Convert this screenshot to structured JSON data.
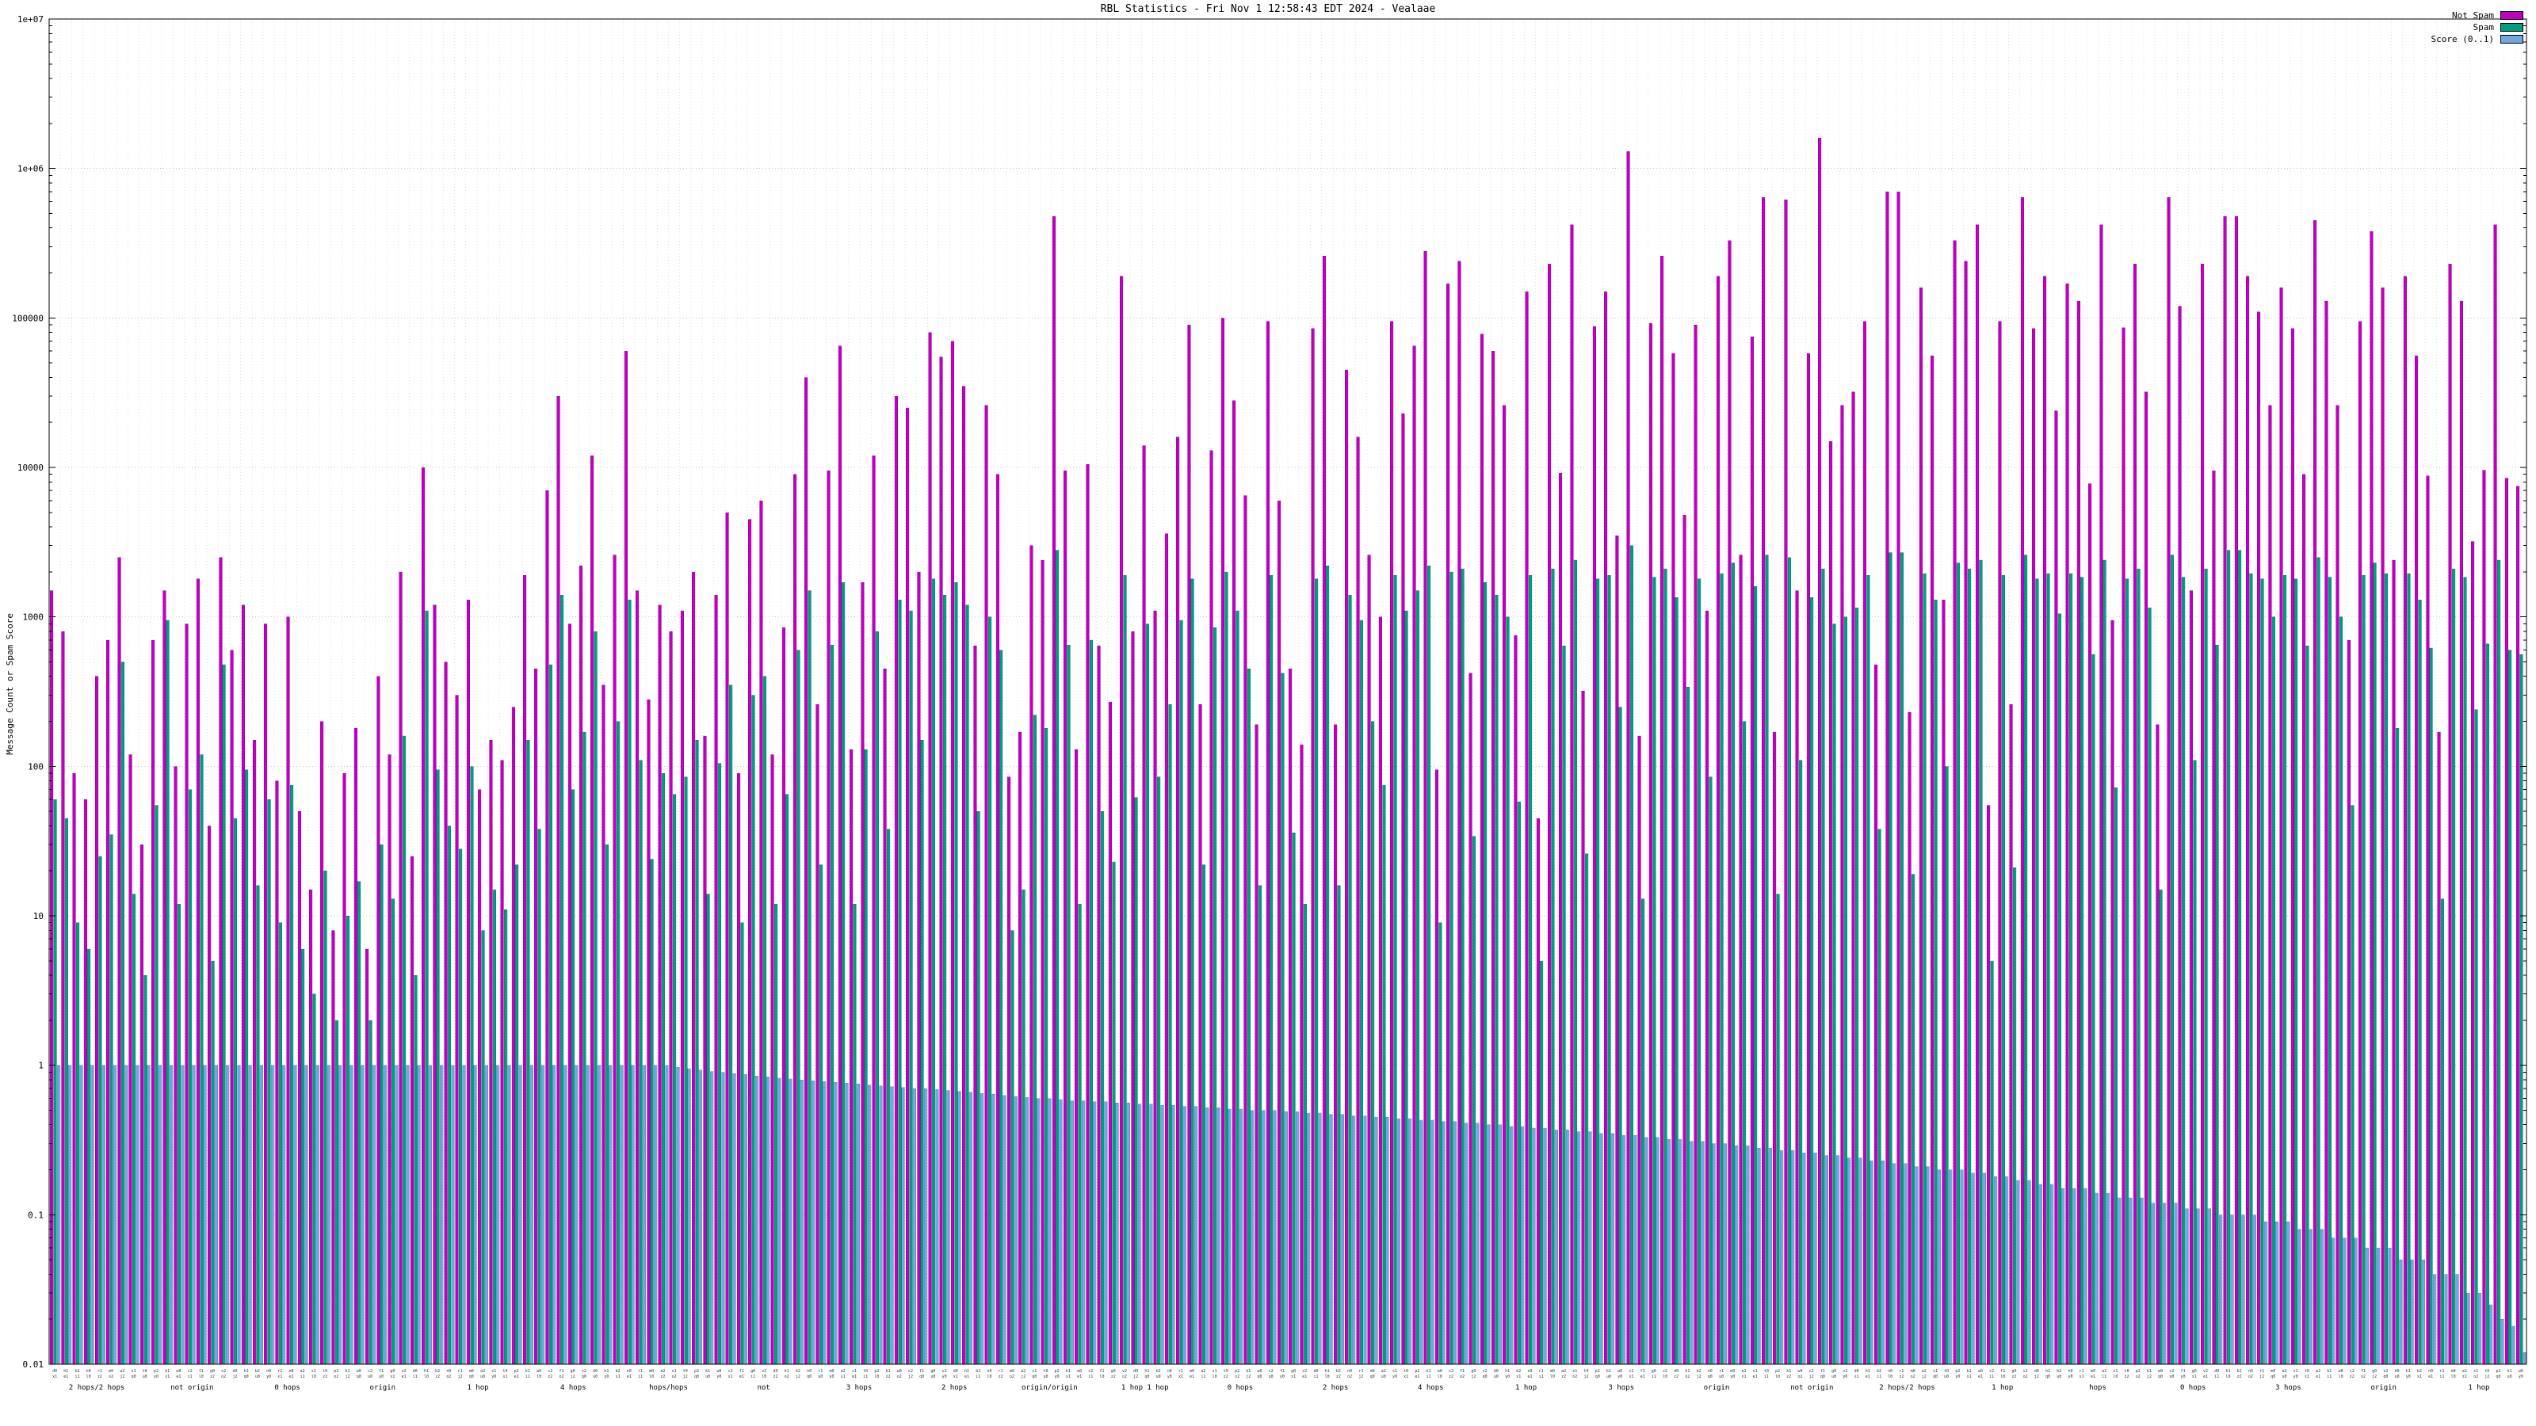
{
  "title": "RBL Statistics - Fri Nov  1 12:58:43 EDT 2024 - Vealaae",
  "legend": {
    "items": [
      {
        "label": "Not Spam",
        "color": "#c000c0"
      },
      {
        "label": "Spam",
        "color": "#009e80"
      },
      {
        "label": "Score (0..1)",
        "color": "#6fa8dc"
      }
    ]
  },
  "y_axis": {
    "label": "Message Count or Spam Score",
    "scale": "log",
    "range": [
      0.01,
      10000000
    ],
    "tick_labels": [
      "1e+07",
      "1e+06",
      "100000",
      "10000",
      "1000",
      "100",
      "10",
      "1",
      "0.1",
      "0.01"
    ]
  },
  "x_axis": {
    "dense_row1": [
      "d0",
      "h1",
      "b2",
      "n0",
      "r1",
      "m0",
      "a2",
      "s1",
      "t0",
      "p2",
      "k1",
      "w0",
      "c2",
      "f1",
      "g0",
      "v2"
    ],
    "dense_row2": [
      "l0",
      "x1",
      "q0",
      "z2",
      "e1",
      "u0",
      "o2",
      "i1",
      "y0",
      "j2"
    ],
    "annotations": [
      "2 hops/2 hops",
      "not origin",
      "0 hops",
      "origin",
      "1 hop",
      "4 hops",
      "hops/hops",
      "not",
      "3 hops",
      "2 hops",
      "origin/origin",
      "1 hop 1 hop",
      "0 hops",
      "2 hops",
      "4 hops",
      "1 hop",
      "3 hops",
      "origin",
      "not origin",
      "2 hops/2 hops",
      "1 hop",
      "hops",
      "0 hops",
      "3 hops",
      "origin",
      "1 hop"
    ]
  },
  "chart_data": {
    "type": "bar",
    "title": "RBL Statistics - Fri Nov  1 12:58:43 EDT 2024 - Vealaae",
    "xlabel": "",
    "ylabel": "Message Count or Spam Score",
    "ylog": true,
    "ylim": [
      0.01,
      10000000
    ],
    "grid": true,
    "legend_position": "top-right",
    "n_groups": 220,
    "series": [
      {
        "name": "Not Spam",
        "color": "#c000c0",
        "values": [
          1500,
          800,
          90,
          60,
          400,
          700,
          2500,
          120,
          30,
          700,
          1500,
          100,
          900,
          1800,
          40,
          2500,
          600,
          1200,
          150,
          900,
          80,
          1000,
          50,
          15,
          200,
          8,
          90,
          180,
          6,
          400,
          120,
          2000,
          25,
          10000,
          1200,
          500,
          300,
          1300,
          70,
          150,
          110,
          250,
          1900,
          450,
          7000,
          30000,
          900,
          2200,
          12000,
          350,
          2600,
          60000,
          1500,
          280,
          1200,
          800,
          1100,
          2000,
          160,
          1400,
          5000,
          90,
          4500,
          6000,
          120,
          850,
          9000,
          40000,
          260,
          9500,
          65000,
          130,
          1700,
          12000,
          450,
          30000,
          25000,
          2000,
          80000,
          55000,
          70000,
          35000,
          640,
          26000,
          9000,
          85,
          170,
          3000,
          2400,
          480000,
          9500,
          130,
          10500,
          640,
          270,
          190000,
          800,
          14000,
          1100,
          3600,
          16000,
          90000,
          260,
          13000,
          100000,
          28000,
          6500,
          190,
          95000,
          6000,
          450,
          140,
          85000,
          260000,
          190,
          45000,
          16000,
          2600,
          1000,
          95000,
          23000,
          65000,
          280000,
          95,
          170000,
          240000,
          420,
          78000,
          60000,
          26000,
          750,
          150000,
          45,
          230000,
          9200,
          420000,
          320,
          88000,
          150000,
          3500,
          1300000,
          160,
          92000,
          260000,
          58000,
          4800,
          90000,
          1100,
          190000,
          330000,
          2600,
          75000,
          640000,
          170,
          620000,
          1500,
          58000,
          1600000,
          15000,
          26000,
          32000,
          95000,
          480,
          700000,
          700000,
          230,
          160000,
          56000,
          1300,
          330000,
          240000,
          420000,
          55,
          95000,
          260,
          640000,
          85000,
          190000,
          24000,
          170000,
          130000,
          7800,
          420000,
          950,
          86000,
          230000,
          32000,
          190,
          640000,
          120000,
          1500,
          230000,
          9500,
          480000,
          480000,
          190000,
          110000,
          26000,
          160000,
          85000,
          9000,
          450000,
          130000,
          26000,
          700,
          95000,
          380000,
          160000,
          2400,
          190000,
          56000,
          8800,
          170,
          230000,
          130000,
          3200,
          9600,
          420000,
          8500,
          7500
        ]
      },
      {
        "name": "Spam",
        "color": "#009e80",
        "values": [
          60,
          45,
          9,
          6,
          25,
          35,
          500,
          14,
          4,
          55,
          950,
          12,
          70,
          120,
          5,
          480,
          45,
          95,
          16,
          60,
          9,
          75,
          6,
          3,
          20,
          2,
          10,
          17,
          2,
          30,
          13,
          160,
          4,
          1100,
          95,
          40,
          28,
          100,
          8,
          15,
          11,
          22,
          150,
          38,
          480,
          1400,
          70,
          170,
          800,
          30,
          200,
          1300,
          110,
          24,
          90,
          65,
          85,
          150,
          14,
          105,
          350,
          9,
          300,
          400,
          12,
          65,
          600,
          1500,
          22,
          650,
          1700,
          12,
          130,
          800,
          38,
          1300,
          1100,
          150,
          1800,
          1400,
          1700,
          1200,
          50,
          1000,
          600,
          8,
          15,
          220,
          180,
          2800,
          650,
          12,
          700,
          50,
          23,
          1900,
          62,
          900,
          85,
          260,
          950,
          1800,
          22,
          850,
          2000,
          1100,
          450,
          16,
          1900,
          420,
          36,
          12,
          1800,
          2200,
          16,
          1400,
          950,
          200,
          75,
          1900,
          1100,
          1500,
          2200,
          9,
          2000,
          2100,
          34,
          1700,
          1400,
          1000,
          58,
          1900,
          5,
          2100,
          640,
          2400,
          26,
          1800,
          1900,
          250,
          3000,
          13,
          1850,
          2100,
          1350,
          340,
          1800,
          85,
          1950,
          2300,
          200,
          1600,
          2600,
          14,
          2500,
          110,
          1350,
          2100,
          900,
          1000,
          1150,
          1900,
          38,
          2700,
          2700,
          19,
          1950,
          1300,
          100,
          2300,
          2100,
          2400,
          5,
          1900,
          21,
          2600,
          1800,
          1950,
          1050,
          1950,
          1850,
          560,
          2400,
          72,
          1800,
          2100,
          1150,
          15,
          2600,
          1850,
          110,
          2100,
          650,
          2800,
          2800,
          1950,
          1800,
          1000,
          1900,
          1800,
          640,
          2500,
          1850,
          1000,
          55,
          1900,
          2300,
          1950,
          180,
          1950,
          1300,
          620,
          13,
          2100,
          1850,
          240,
          660,
          2400,
          600,
          560
        ]
      },
      {
        "name": "Score (0..1)",
        "color": "#6fa8dc",
        "values": [
          1,
          1,
          1,
          1,
          1,
          1,
          1,
          1,
          1,
          1,
          1,
          1,
          1,
          1,
          1,
          1,
          1,
          1,
          1,
          1,
          1,
          1,
          1,
          1,
          1,
          1,
          1,
          1,
          1,
          1,
          1,
          1,
          1,
          1,
          1,
          1,
          1,
          1,
          1,
          1,
          1,
          1,
          1,
          1,
          1,
          1,
          1,
          1,
          1,
          1,
          1,
          1,
          1,
          1,
          1,
          0.97,
          0.95,
          0.93,
          0.91,
          0.9,
          0.88,
          0.87,
          0.85,
          0.84,
          0.82,
          0.81,
          0.8,
          0.79,
          0.78,
          0.77,
          0.76,
          0.75,
          0.74,
          0.73,
          0.72,
          0.71,
          0.7,
          0.7,
          0.69,
          0.68,
          0.67,
          0.66,
          0.65,
          0.64,
          0.63,
          0.62,
          0.61,
          0.6,
          0.6,
          0.59,
          0.58,
          0.58,
          0.57,
          0.57,
          0.56,
          0.56,
          0.55,
          0.55,
          0.54,
          0.54,
          0.53,
          0.53,
          0.52,
          0.52,
          0.51,
          0.51,
          0.5,
          0.5,
          0.5,
          0.49,
          0.49,
          0.48,
          0.48,
          0.47,
          0.47,
          0.46,
          0.46,
          0.45,
          0.45,
          0.44,
          0.44,
          0.43,
          0.43,
          0.42,
          0.42,
          0.41,
          0.41,
          0.4,
          0.4,
          0.39,
          0.39,
          0.38,
          0.38,
          0.37,
          0.37,
          0.36,
          0.36,
          0.35,
          0.35,
          0.34,
          0.34,
          0.33,
          0.33,
          0.32,
          0.32,
          0.31,
          0.31,
          0.3,
          0.3,
          0.29,
          0.29,
          0.28,
          0.28,
          0.27,
          0.27,
          0.26,
          0.26,
          0.25,
          0.25,
          0.24,
          0.24,
          0.23,
          0.23,
          0.22,
          0.22,
          0.21,
          0.21,
          0.2,
          0.2,
          0.2,
          0.19,
          0.19,
          0.18,
          0.18,
          0.17,
          0.17,
          0.16,
          0.16,
          0.15,
          0.15,
          0.15,
          0.14,
          0.14,
          0.13,
          0.13,
          0.13,
          0.12,
          0.12,
          0.12,
          0.11,
          0.11,
          0.11,
          0.1,
          0.1,
          0.1,
          0.1,
          0.09,
          0.09,
          0.09,
          0.08,
          0.08,
          0.08,
          0.07,
          0.07,
          0.07,
          0.06,
          0.06,
          0.06,
          0.05,
          0.05,
          0.05,
          0.04,
          0.04,
          0.04,
          0.03,
          0.03,
          0.025,
          0.02,
          0.018,
          0.012
        ]
      }
    ]
  }
}
